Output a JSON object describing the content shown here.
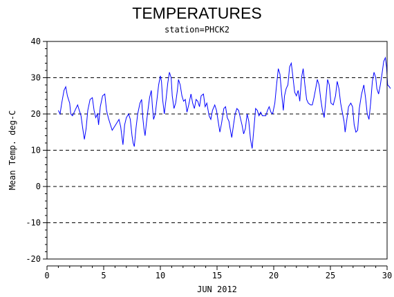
{
  "chart_data": {
    "type": "line",
    "title": "TEMPERATURES",
    "subtitle": "station=PHCK2",
    "xlabel": "JUN 2012",
    "ylabel": "Mean Temp. deg-C",
    "xlim": [
      0,
      30
    ],
    "ylim": [
      -20,
      40
    ],
    "x_ticks": [
      0,
      5,
      10,
      15,
      20,
      25,
      30
    ],
    "y_ticks": [
      -20,
      -10,
      0,
      10,
      20,
      30,
      40
    ],
    "grid": "horizontal dashed",
    "line_color": "#0000ff",
    "series": [
      {
        "values": [
          [
            1.0,
            21.0
          ],
          [
            1.15,
            20.0
          ],
          [
            1.3,
            23.0
          ],
          [
            1.5,
            26.5
          ],
          [
            1.65,
            27.5
          ],
          [
            1.8,
            25.0
          ],
          [
            2.0,
            23.0
          ],
          [
            2.1,
            20.0
          ],
          [
            2.25,
            19.5
          ],
          [
            2.4,
            20.5
          ],
          [
            2.55,
            21.5
          ],
          [
            2.7,
            22.5
          ],
          [
            2.85,
            21.0
          ],
          [
            3.0,
            19.5
          ],
          [
            3.15,
            16.0
          ],
          [
            3.3,
            13.0
          ],
          [
            3.45,
            16.0
          ],
          [
            3.6,
            21.0
          ],
          [
            3.8,
            24.0
          ],
          [
            4.0,
            24.5
          ],
          [
            4.15,
            21.0
          ],
          [
            4.3,
            19.0
          ],
          [
            4.45,
            20.0
          ],
          [
            4.55,
            17.0
          ],
          [
            4.7,
            22.0
          ],
          [
            4.9,
            25.0
          ],
          [
            5.1,
            25.5
          ],
          [
            5.25,
            21.0
          ],
          [
            5.4,
            19.0
          ],
          [
            5.55,
            17.5
          ],
          [
            5.75,
            15.5
          ],
          [
            5.95,
            16.5
          ],
          [
            6.15,
            17.5
          ],
          [
            6.35,
            18.5
          ],
          [
            6.5,
            16.5
          ],
          [
            6.6,
            14.0
          ],
          [
            6.7,
            11.5
          ],
          [
            6.85,
            17.0
          ],
          [
            7.0,
            19.0
          ],
          [
            7.2,
            20.0
          ],
          [
            7.35,
            18.5
          ],
          [
            7.5,
            14.0
          ],
          [
            7.6,
            12.0
          ],
          [
            7.7,
            11.0
          ],
          [
            7.85,
            16.0
          ],
          [
            8.0,
            20.0
          ],
          [
            8.2,
            23.0
          ],
          [
            8.35,
            24.0
          ],
          [
            8.45,
            19.0
          ],
          [
            8.55,
            16.0
          ],
          [
            8.65,
            14.0
          ],
          [
            8.75,
            17.0
          ],
          [
            8.9,
            21.0
          ],
          [
            9.05,
            24.5
          ],
          [
            9.2,
            26.5
          ],
          [
            9.3,
            22.0
          ],
          [
            9.4,
            18.5
          ],
          [
            9.55,
            20.0
          ],
          [
            9.7,
            24.0
          ],
          [
            9.85,
            28.0
          ],
          [
            10.0,
            30.5
          ],
          [
            10.1,
            29.0
          ],
          [
            10.2,
            24.0
          ],
          [
            10.35,
            20.0
          ],
          [
            10.5,
            24.0
          ],
          [
            10.65,
            28.5
          ],
          [
            10.8,
            31.5
          ],
          [
            10.95,
            30.0
          ],
          [
            11.05,
            25.0
          ],
          [
            11.2,
            21.5
          ],
          [
            11.35,
            23.0
          ],
          [
            11.5,
            26.5
          ],
          [
            11.6,
            29.5
          ],
          [
            11.75,
            28.0
          ],
          [
            11.9,
            25.0
          ],
          [
            12.05,
            23.5
          ],
          [
            12.2,
            24.0
          ],
          [
            12.35,
            20.5
          ],
          [
            12.5,
            22.5
          ],
          [
            12.7,
            25.5
          ],
          [
            12.85,
            23.0
          ],
          [
            13.0,
            21.5
          ],
          [
            13.15,
            24.0
          ],
          [
            13.3,
            23.5
          ],
          [
            13.45,
            22.0
          ],
          [
            13.6,
            25.0
          ],
          [
            13.8,
            25.5
          ],
          [
            13.95,
            22.0
          ],
          [
            14.1,
            23.0
          ],
          [
            14.3,
            19.5
          ],
          [
            14.45,
            18.5
          ],
          [
            14.6,
            21.0
          ],
          [
            14.8,
            22.5
          ],
          [
            14.95,
            21.0
          ],
          [
            15.1,
            18.0
          ],
          [
            15.25,
            15.0
          ],
          [
            15.4,
            17.5
          ],
          [
            15.6,
            21.5
          ],
          [
            15.75,
            22.0
          ],
          [
            15.9,
            19.0
          ],
          [
            16.05,
            18.0
          ],
          [
            16.15,
            16.0
          ],
          [
            16.3,
            13.5
          ],
          [
            16.45,
            17.0
          ],
          [
            16.6,
            20.0
          ],
          [
            16.75,
            21.5
          ],
          [
            16.9,
            21.0
          ],
          [
            17.05,
            19.0
          ],
          [
            17.2,
            17.0
          ],
          [
            17.35,
            14.5
          ],
          [
            17.5,
            16.0
          ],
          [
            17.65,
            20.0
          ],
          [
            17.8,
            18.0
          ],
          [
            17.95,
            13.0
          ],
          [
            18.1,
            10.5
          ],
          [
            18.25,
            16.0
          ],
          [
            18.4,
            21.5
          ],
          [
            18.55,
            21.0
          ],
          [
            18.7,
            19.5
          ],
          [
            18.85,
            20.5
          ],
          [
            19.0,
            19.5
          ],
          [
            19.15,
            19.5
          ],
          [
            19.3,
            19.5
          ],
          [
            19.45,
            21.0
          ],
          [
            19.6,
            22.0
          ],
          [
            19.75,
            20.5
          ],
          [
            19.9,
            20.0
          ],
          [
            20.1,
            23.0
          ],
          [
            20.25,
            28.0
          ],
          [
            20.4,
            32.5
          ],
          [
            20.55,
            31.0
          ],
          [
            20.7,
            25.5
          ],
          [
            20.85,
            21.0
          ],
          [
            20.95,
            25.0
          ],
          [
            21.1,
            27.0
          ],
          [
            21.25,
            28.0
          ],
          [
            21.4,
            33.0
          ],
          [
            21.55,
            34.0
          ],
          [
            21.7,
            30.0
          ],
          [
            21.85,
            26.0
          ],
          [
            22.0,
            25.0
          ],
          [
            22.15,
            26.5
          ],
          [
            22.3,
            23.5
          ],
          [
            22.45,
            30.0
          ],
          [
            22.6,
            32.5
          ],
          [
            22.75,
            28.0
          ],
          [
            22.9,
            24.0
          ],
          [
            23.05,
            23.0
          ],
          [
            23.25,
            22.5
          ],
          [
            23.4,
            22.5
          ],
          [
            23.55,
            24.5
          ],
          [
            23.7,
            27.0
          ],
          [
            23.85,
            29.5
          ],
          [
            24.0,
            28.0
          ],
          [
            24.15,
            24.0
          ],
          [
            24.3,
            21.0
          ],
          [
            24.45,
            19.0
          ],
          [
            24.6,
            24.0
          ],
          [
            24.75,
            29.5
          ],
          [
            24.9,
            28.0
          ],
          [
            25.05,
            23.0
          ],
          [
            25.25,
            22.5
          ],
          [
            25.45,
            25.0
          ],
          [
            25.6,
            29.0
          ],
          [
            25.75,
            27.0
          ],
          [
            25.9,
            23.0
          ],
          [
            26.05,
            20.5
          ],
          [
            26.2,
            18.0
          ],
          [
            26.3,
            15.0
          ],
          [
            26.45,
            18.5
          ],
          [
            26.6,
            22.0
          ],
          [
            26.8,
            23.0
          ],
          [
            26.95,
            22.0
          ],
          [
            27.1,
            17.0
          ],
          [
            27.25,
            15.0
          ],
          [
            27.4,
            15.5
          ],
          [
            27.55,
            21.5
          ],
          [
            27.75,
            25.5
          ],
          [
            27.95,
            28.0
          ],
          [
            28.1,
            24.5
          ],
          [
            28.25,
            20.0
          ],
          [
            28.4,
            18.5
          ],
          [
            28.55,
            23.0
          ],
          [
            28.7,
            29.0
          ],
          [
            28.85,
            31.5
          ],
          [
            29.0,
            30.0
          ],
          [
            29.1,
            27.0
          ],
          [
            29.25,
            25.5
          ],
          [
            29.4,
            28.0
          ],
          [
            29.55,
            31.0
          ],
          [
            29.7,
            34.5
          ],
          [
            29.85,
            35.5
          ],
          [
            29.95,
            33.0
          ],
          [
            30.05,
            28.0
          ],
          [
            30.2,
            27.5
          ],
          [
            30.3,
            27.0
          ]
        ]
      }
    ]
  }
}
